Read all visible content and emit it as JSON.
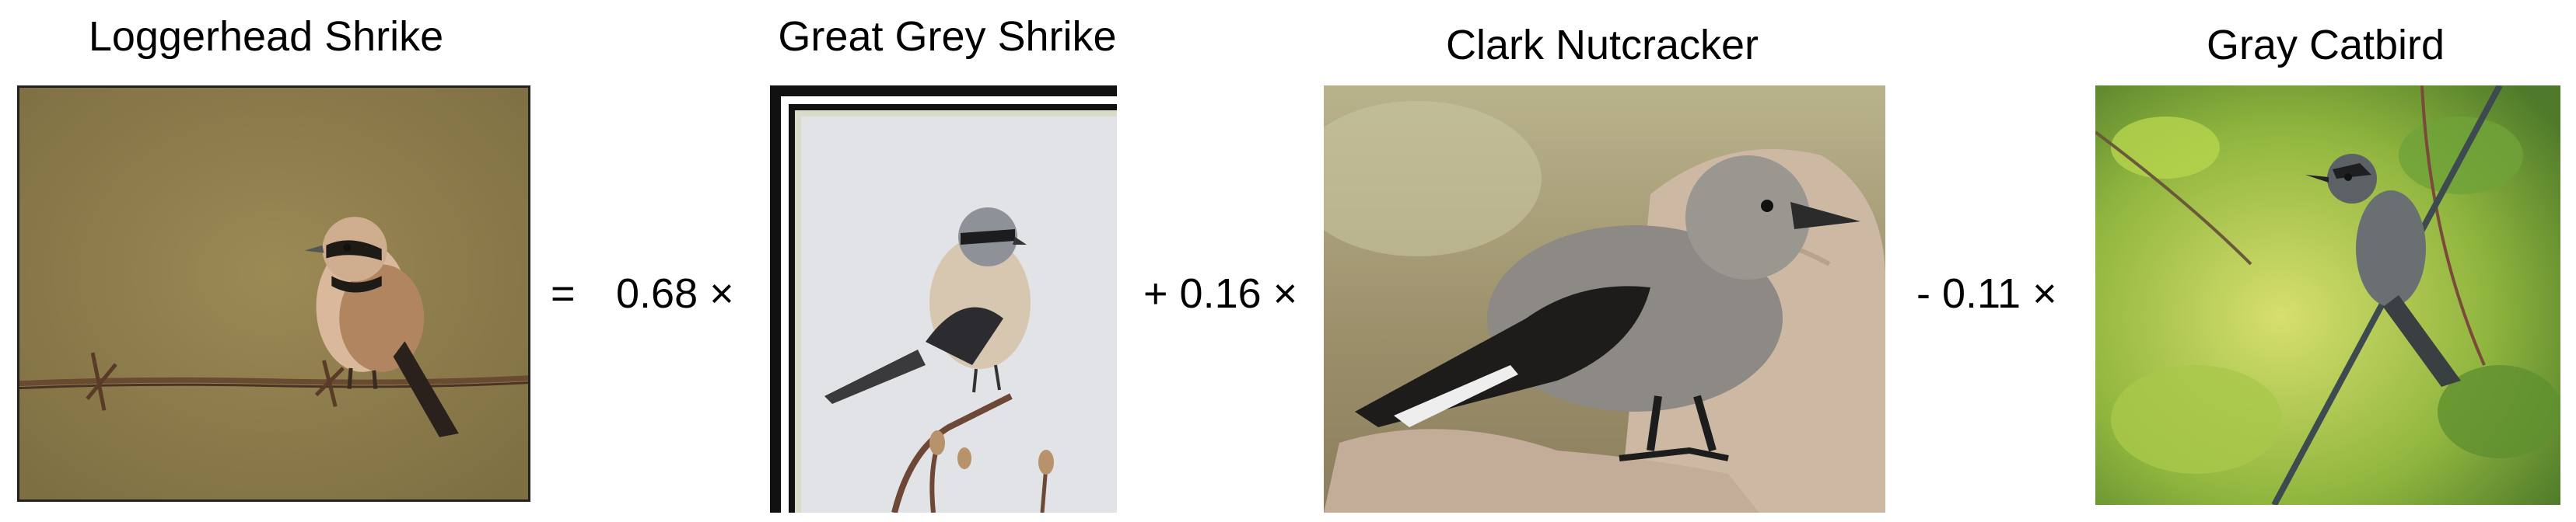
{
  "panels": [
    {
      "label": "Loggerhead Shrike"
    },
    {
      "label": "Great Grey Shrike"
    },
    {
      "label": "Clark Nutcracker"
    },
    {
      "label": "Gray Catbird"
    }
  ],
  "equation": {
    "equals": "=",
    "term1": "0.68 ×",
    "term2": "+ 0.16 ×",
    "term3": "- 0.11 ×"
  }
}
